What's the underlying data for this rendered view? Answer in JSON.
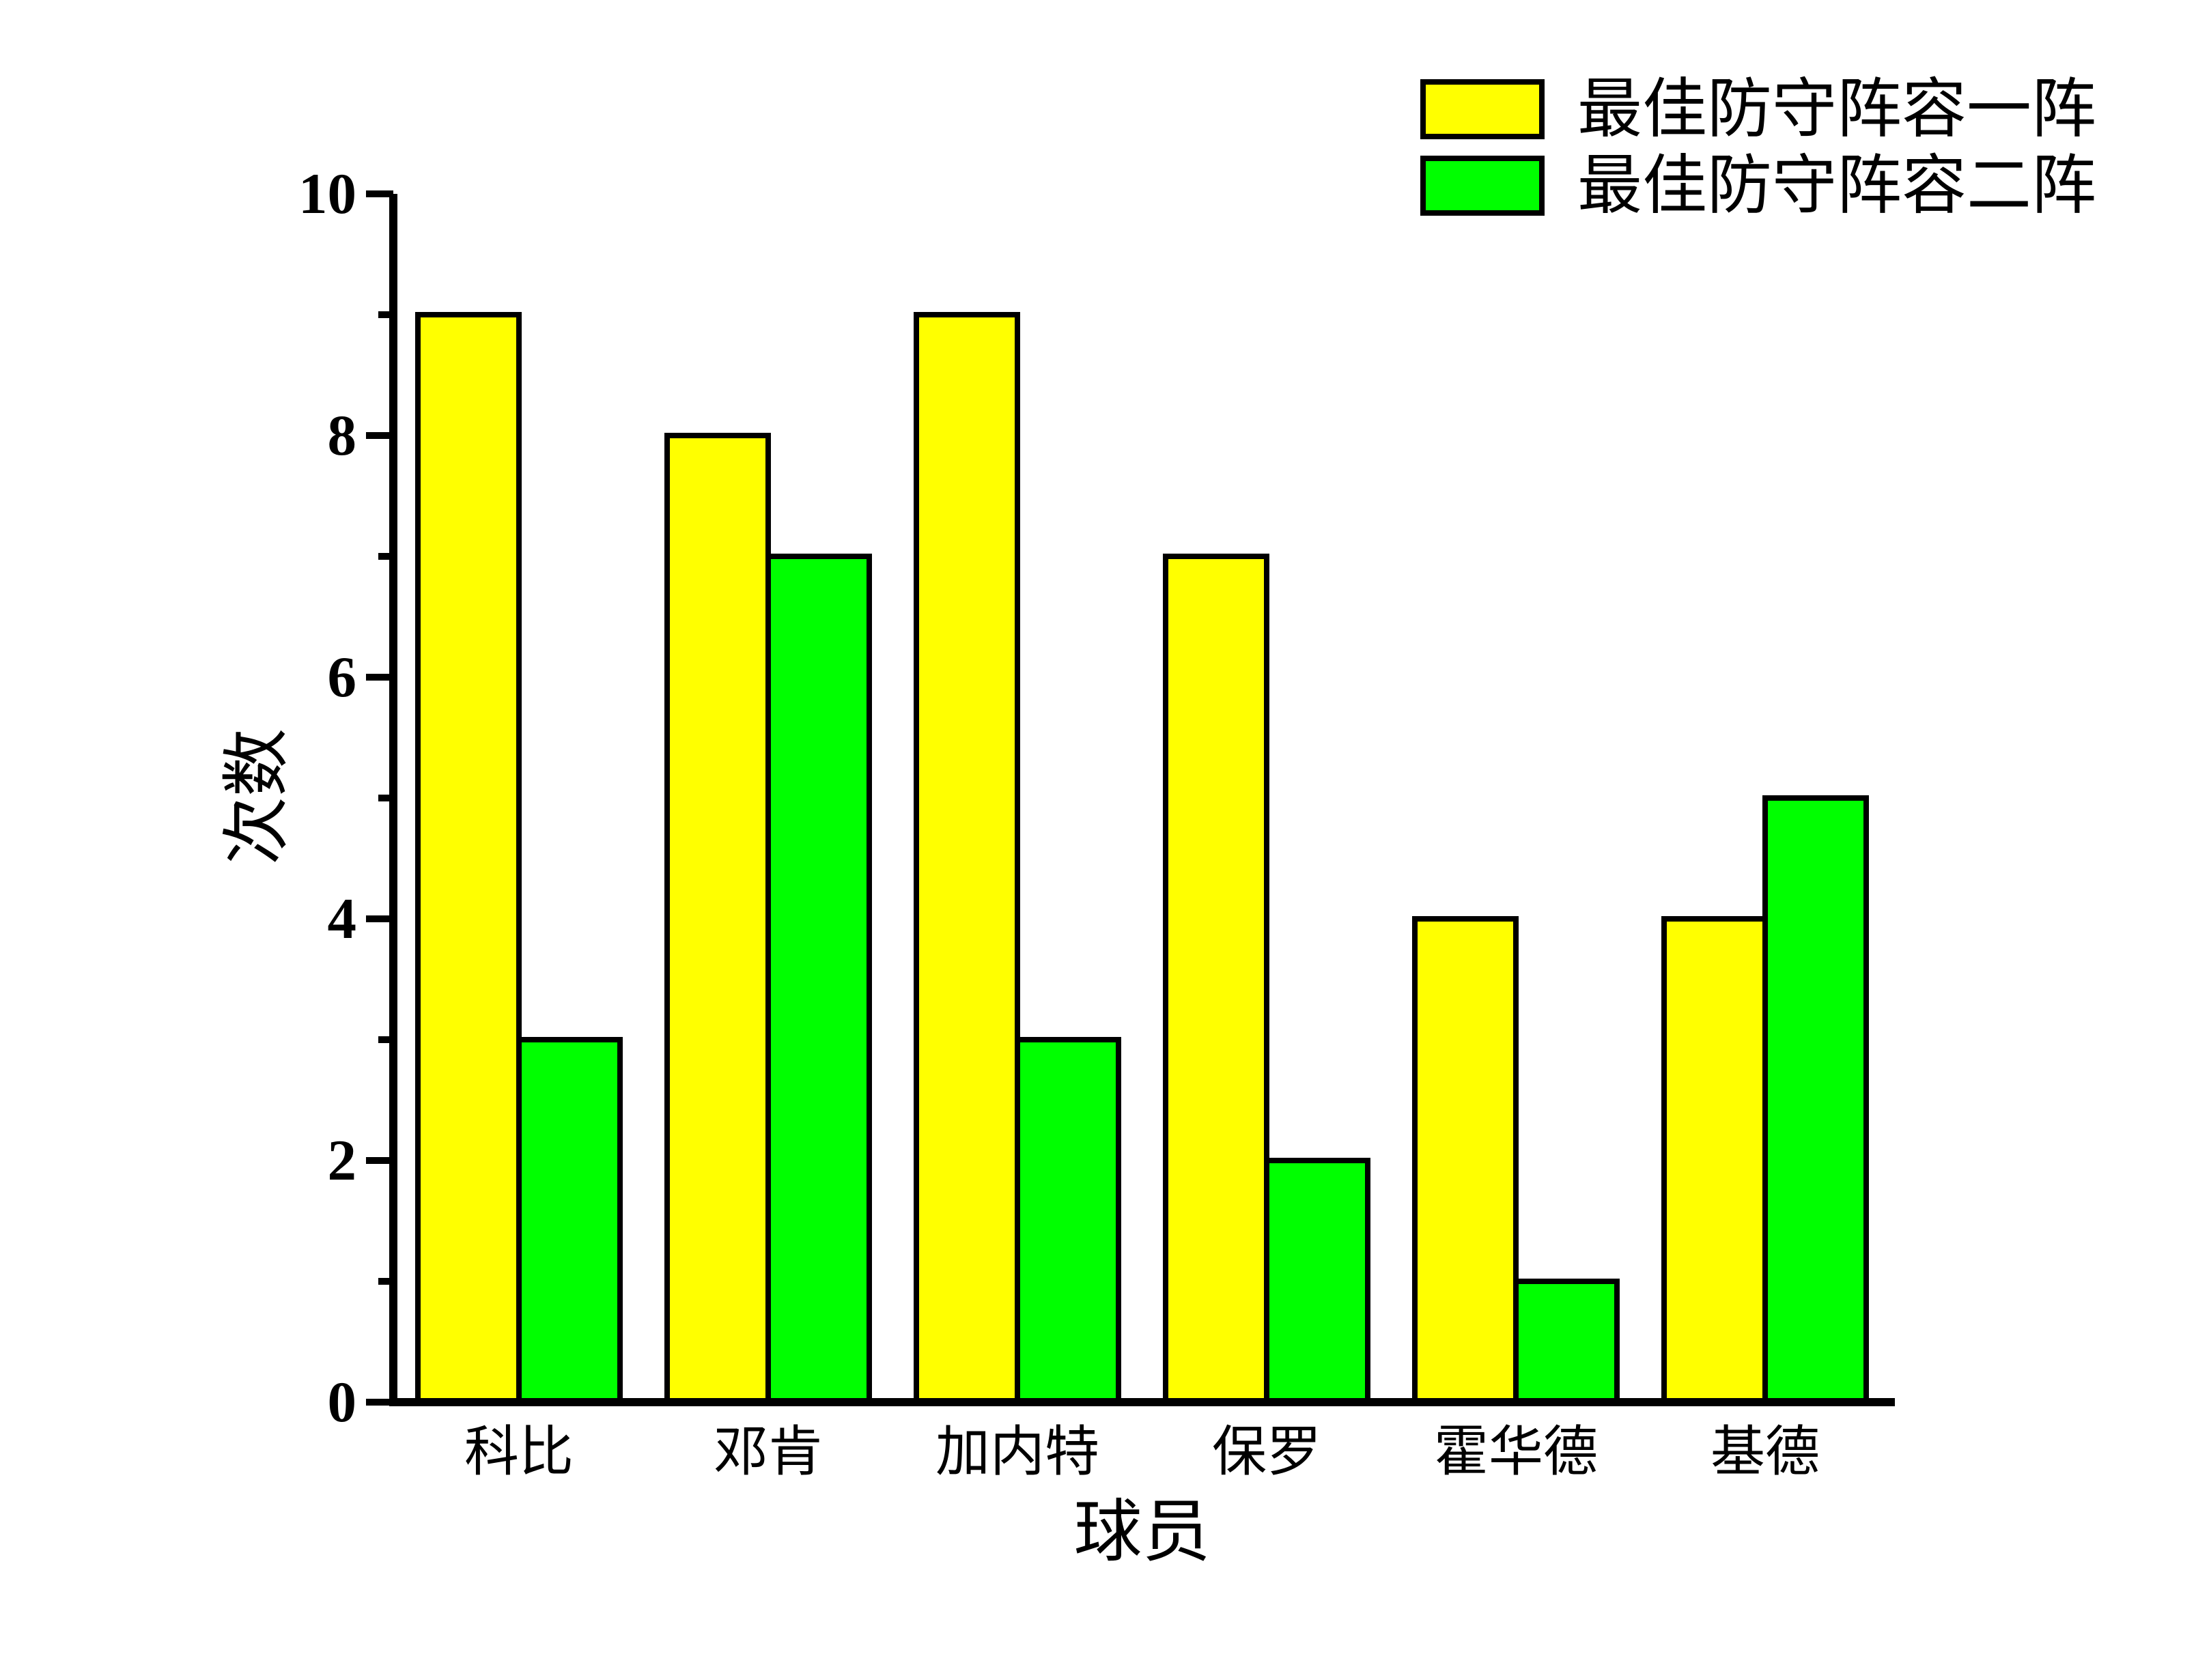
{
  "chart_data": {
    "type": "bar",
    "title": "",
    "categories": [
      "科比",
      "邓肯",
      "加内特",
      "保罗",
      "霍华德",
      "基德"
    ],
    "series": [
      {
        "name": "最佳防守阵容一阵",
        "color": "#FFFF00",
        "values": [
          9,
          8,
          9,
          7,
          4,
          4
        ]
      },
      {
        "name": "最佳防守阵容二阵",
        "color": "#00FF00",
        "values": [
          3,
          7,
          3,
          2,
          1,
          5
        ]
      }
    ],
    "xlabel": "球员",
    "ylabel": "次数",
    "ylim": [
      0,
      10
    ],
    "y_major_ticks": [
      "0",
      "2",
      "4",
      "6",
      "8",
      "10"
    ],
    "y_minor_ticks": [
      1,
      3,
      5,
      7,
      9
    ],
    "grid": false,
    "legend_position": "top-right",
    "bar_outline_color": "#000000",
    "axis_color": "#000000",
    "background_color": "#FFFFFF"
  }
}
